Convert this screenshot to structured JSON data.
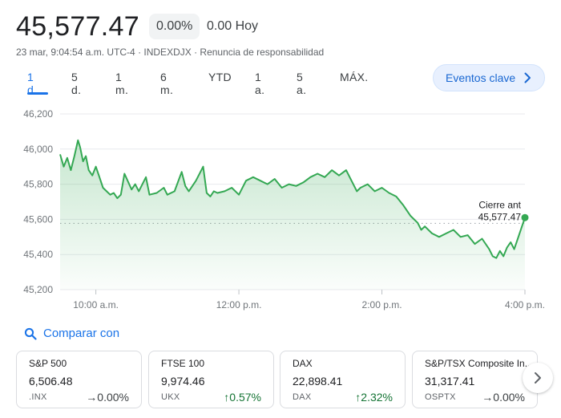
{
  "quote": {
    "price": "45,577.47",
    "change_pct": "0.00%",
    "change_today": "0.00 Hoy",
    "meta": "23 mar, 9:04:54 a.m. UTC-4 · INDEXDJX · Renuncia de responsabilidad"
  },
  "ranges": [
    "1 d.",
    "5 d.",
    "1 m.",
    "6 m.",
    "YTD",
    "1 a.",
    "5 a.",
    "MÁX."
  ],
  "active_range": "1 d.",
  "events_button": "Eventos clave",
  "compare_label": "Comparar con",
  "colors": {
    "accent": "#1a73e8",
    "line": "#34a853",
    "positive": "#137333"
  },
  "chart_data": {
    "type": "area",
    "ylim": [
      45200,
      46200
    ],
    "yticks": [
      "46,200",
      "46,000",
      "45,800",
      "45,600",
      "45,400",
      "45,200"
    ],
    "xticks": [
      "10:00 a.m.",
      "12:00 p.m.",
      "2:00 p.m.",
      "4:00 p.m."
    ],
    "xlim_hours": [
      9.5,
      16
    ],
    "xtick_hours": [
      10,
      12,
      14,
      16
    ],
    "previous_close": 45577.47,
    "previous_close_label": [
      "Cierre ant",
      "45,577.47"
    ],
    "grid": true,
    "series": [
      {
        "x": [
          9.5,
          9.55,
          9.6,
          9.65,
          9.7,
          9.75,
          9.78,
          9.82,
          9.86,
          9.9,
          9.95,
          10.0,
          10.05,
          10.1,
          10.15,
          10.2,
          10.25,
          10.3,
          10.35,
          10.4,
          10.5,
          10.55,
          10.6,
          10.7,
          10.75,
          10.85,
          10.95,
          11.0,
          11.1,
          11.2,
          11.25,
          11.3,
          11.4,
          11.5,
          11.55,
          11.6,
          11.65,
          11.7,
          11.8,
          11.9,
          12.0,
          12.1,
          12.2,
          12.3,
          12.4,
          12.5,
          12.6,
          12.7,
          12.8,
          12.9,
          13.0,
          13.1,
          13.2,
          13.3,
          13.4,
          13.5,
          13.6,
          13.65,
          13.7,
          13.8,
          13.9,
          14.0,
          14.1,
          14.2,
          14.3,
          14.4,
          14.5,
          14.55,
          14.6,
          14.7,
          14.8,
          14.9,
          15.0,
          15.1,
          15.2,
          15.3,
          15.4,
          15.5,
          15.55,
          15.6,
          15.65,
          15.7,
          15.75,
          15.8,
          15.85,
          15.9,
          15.95,
          16.0
        ],
        "y": [
          45970,
          45900,
          45950,
          45880,
          45960,
          46050,
          46010,
          45930,
          45960,
          45880,
          45850,
          45900,
          45840,
          45780,
          45760,
          45740,
          45750,
          45720,
          45740,
          45860,
          45770,
          45800,
          45760,
          45840,
          45740,
          45750,
          45780,
          45740,
          45760,
          45870,
          45790,
          45760,
          45820,
          45900,
          45750,
          45730,
          45760,
          45750,
          45760,
          45780,
          45740,
          45820,
          45840,
          45820,
          45800,
          45830,
          45780,
          45800,
          45790,
          45810,
          45840,
          45860,
          45840,
          45880,
          45850,
          45880,
          45800,
          45760,
          45780,
          45800,
          45760,
          45780,
          45750,
          45730,
          45680,
          45620,
          45580,
          45540,
          45560,
          45520,
          45500,
          45520,
          45540,
          45500,
          45510,
          45460,
          45490,
          45430,
          45390,
          45380,
          45420,
          45390,
          45440,
          45470,
          45430,
          45490,
          45550,
          45610
        ]
      }
    ]
  },
  "cards": [
    {
      "name": "S&P 500",
      "value": "6,506.48",
      "symbol": ".INX",
      "change": "→0.00%",
      "direction": "flat"
    },
    {
      "name": "FTSE 100",
      "value": "9,974.46",
      "symbol": "UKX",
      "change": "↑0.57%",
      "direction": "up"
    },
    {
      "name": "DAX",
      "value": "22,898.41",
      "symbol": "DAX",
      "change": "↑2.32%",
      "direction": "up"
    },
    {
      "name": "S&P/TSX Composite In...",
      "value": "31,317.41",
      "symbol": "OSPTX",
      "change": "→0.00%",
      "direction": "flat"
    }
  ]
}
